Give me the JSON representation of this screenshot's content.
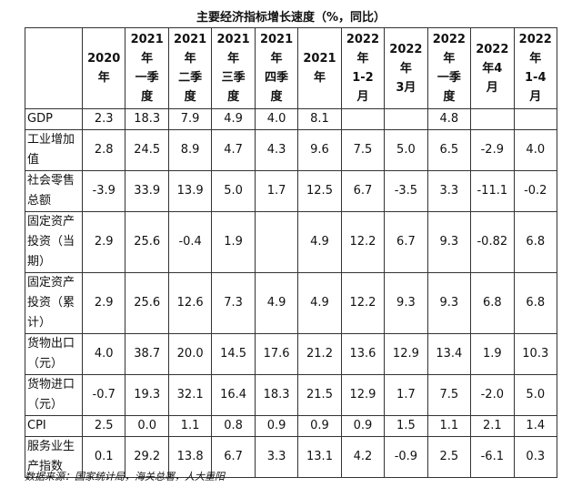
{
  "title": "主要经济指标增长速度（%，同比）",
  "table": {
    "headers": [
      [
        "2020",
        "年"
      ],
      [
        "2021",
        "年",
        "一季",
        "度"
      ],
      [
        "2021",
        "年",
        "二季",
        "度"
      ],
      [
        "2021",
        "年",
        "三季",
        "度"
      ],
      [
        "2021",
        "年",
        "四季",
        "度"
      ],
      [
        "2021",
        "年"
      ],
      [
        "2022",
        "年",
        "1-2",
        "月"
      ],
      [
        "2022",
        "年",
        "3月"
      ],
      [
        "2022",
        "年",
        "一季",
        "度"
      ],
      [
        "2022",
        "年4",
        "月"
      ],
      [
        "2022",
        "年",
        "1-4",
        "月"
      ]
    ],
    "rows": [
      {
        "label": "GDP",
        "cells": [
          "2.3",
          "18.3",
          "7.9",
          "4.9",
          "4.0",
          "8.1",
          null,
          null,
          "4.8",
          null,
          null
        ]
      },
      {
        "label": "工业增加值",
        "cells": [
          "2.8",
          "24.5",
          "8.9",
          "4.7",
          "4.3",
          "9.6",
          "7.5",
          "5.0",
          "6.5",
          "-2.9",
          "4.0"
        ]
      },
      {
        "label": "社会零售总额",
        "cells": [
          "-3.9",
          "33.9",
          "13.9",
          "5.0",
          "1.7",
          "12.5",
          "6.7",
          "-3.5",
          "3.3",
          "-11.1",
          "-0.2"
        ]
      },
      {
        "label": "固定资产投资（当期）",
        "cells": [
          "2.9",
          "25.6",
          "-0.4",
          "1.9",
          null,
          "4.9",
          "12.2",
          "6.7",
          "9.3",
          "-0.82",
          "6.8"
        ]
      },
      {
        "label": "固定资产投资（累计）",
        "cells": [
          "2.9",
          "25.6",
          "12.6",
          "7.3",
          "4.9",
          "4.9",
          "12.2",
          "9.3",
          "9.3",
          "6.8",
          "6.8"
        ]
      },
      {
        "label": "货物出口（元）",
        "cells": [
          "4.0",
          "38.7",
          "20.0",
          "14.5",
          "17.6",
          "21.2",
          "13.6",
          "12.9",
          "13.4",
          "1.9",
          "10.3"
        ]
      },
      {
        "label": "货物进口（元）",
        "cells": [
          "-0.7",
          "19.3",
          "32.1",
          "16.4",
          "18.3",
          "21.5",
          "12.9",
          "1.7",
          "7.5",
          "-2.0",
          "5.0"
        ]
      },
      {
        "label": "CPI",
        "cells": [
          "2.5",
          "0.0",
          "1.1",
          "0.8",
          "0.9",
          "0.9",
          "0.9",
          "1.5",
          "1.1",
          "2.1",
          "1.4"
        ]
      },
      {
        "label": "服务业生产指数",
        "cells": [
          "0.1",
          "29.2",
          "13.8",
          "6.7",
          "3.3",
          "13.1",
          "4.2",
          "-0.9",
          "2.5",
          "-6.1",
          "0.3"
        ]
      }
    ]
  },
  "source": "数据来源：国家统计局，海关总署，人大重阳"
}
